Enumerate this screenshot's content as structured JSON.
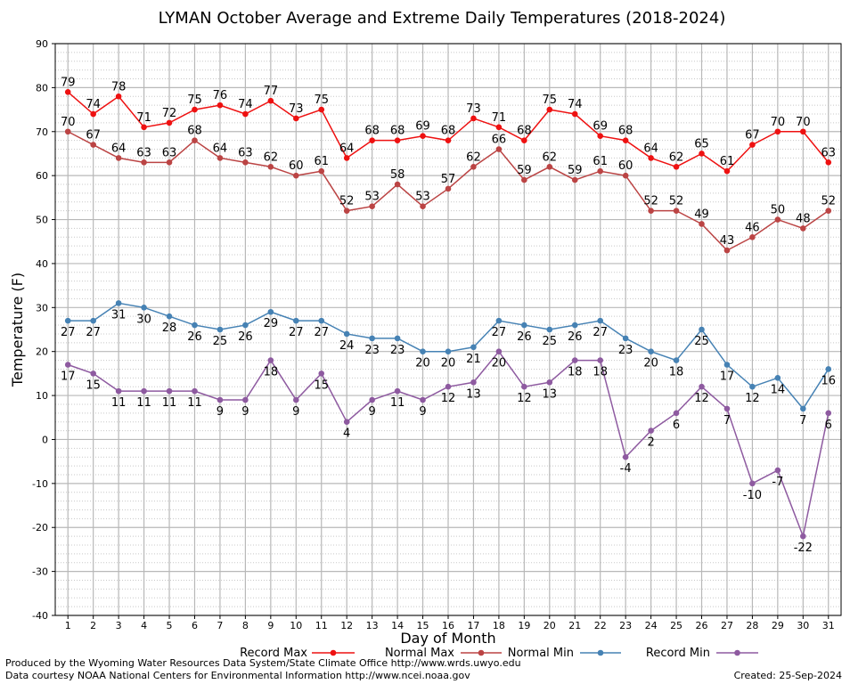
{
  "chart_data": {
    "type": "line",
    "title": "LYMAN October Average and Extreme Daily Temperatures (2018-2024)",
    "xlabel": "Day of Month",
    "ylabel": "Temperature (F)",
    "ylim": [
      -40,
      90
    ],
    "xlim": [
      0.5,
      31.5
    ],
    "yticks": [
      -40,
      -30,
      -20,
      -10,
      0,
      10,
      20,
      30,
      40,
      50,
      60,
      70,
      80,
      90
    ],
    "categories": [
      1,
      2,
      3,
      4,
      5,
      6,
      7,
      8,
      9,
      10,
      11,
      12,
      13,
      14,
      15,
      16,
      17,
      18,
      19,
      20,
      21,
      22,
      23,
      24,
      25,
      26,
      27,
      28,
      29,
      30,
      31
    ],
    "grid": true,
    "series": [
      {
        "name": "Record Max",
        "color": "#ee1111",
        "label_pos": "above",
        "values": [
          79,
          74,
          78,
          71,
          72,
          75,
          76,
          74,
          77,
          73,
          75,
          64,
          68,
          68,
          69,
          68,
          73,
          71,
          68,
          75,
          74,
          69,
          68,
          64,
          62,
          65,
          61,
          67,
          70,
          70,
          63
        ]
      },
      {
        "name": "Normal Max",
        "color": "#bb4444",
        "label_pos": "above",
        "values": [
          70,
          67,
          64,
          63,
          63,
          68,
          64,
          63,
          62,
          60,
          61,
          52,
          53,
          58,
          53,
          57,
          62,
          66,
          59,
          62,
          59,
          61,
          60,
          52,
          52,
          49,
          43,
          46,
          50,
          48,
          52
        ]
      },
      {
        "name": "Normal Min",
        "color": "#4682b4",
        "label_pos": "below",
        "values": [
          27,
          27,
          31,
          30,
          28,
          26,
          25,
          26,
          29,
          27,
          27,
          24,
          23,
          23,
          20,
          20,
          21,
          27,
          26,
          25,
          26,
          27,
          23,
          20,
          18,
          25,
          17,
          12,
          14,
          7,
          16
        ]
      },
      {
        "name": "Record Min",
        "color": "#8e5aa0",
        "label_pos": "below",
        "values": [
          17,
          15,
          11,
          11,
          11,
          11,
          9,
          9,
          18,
          9,
          15,
          4,
          9,
          11,
          9,
          12,
          13,
          20,
          12,
          13,
          18,
          18,
          -4,
          2,
          6,
          12,
          7,
          -10,
          -7,
          -22,
          6
        ]
      }
    ]
  },
  "footer": {
    "line1": "Produced by the Wyoming Water Resources Data System/State Climate Office http://www.wrds.uwyo.edu",
    "line2": "Data courtesy NOAA National Centers for Environmental Information http://www.ncei.noaa.gov",
    "created": "Created: 25-Sep-2024"
  }
}
